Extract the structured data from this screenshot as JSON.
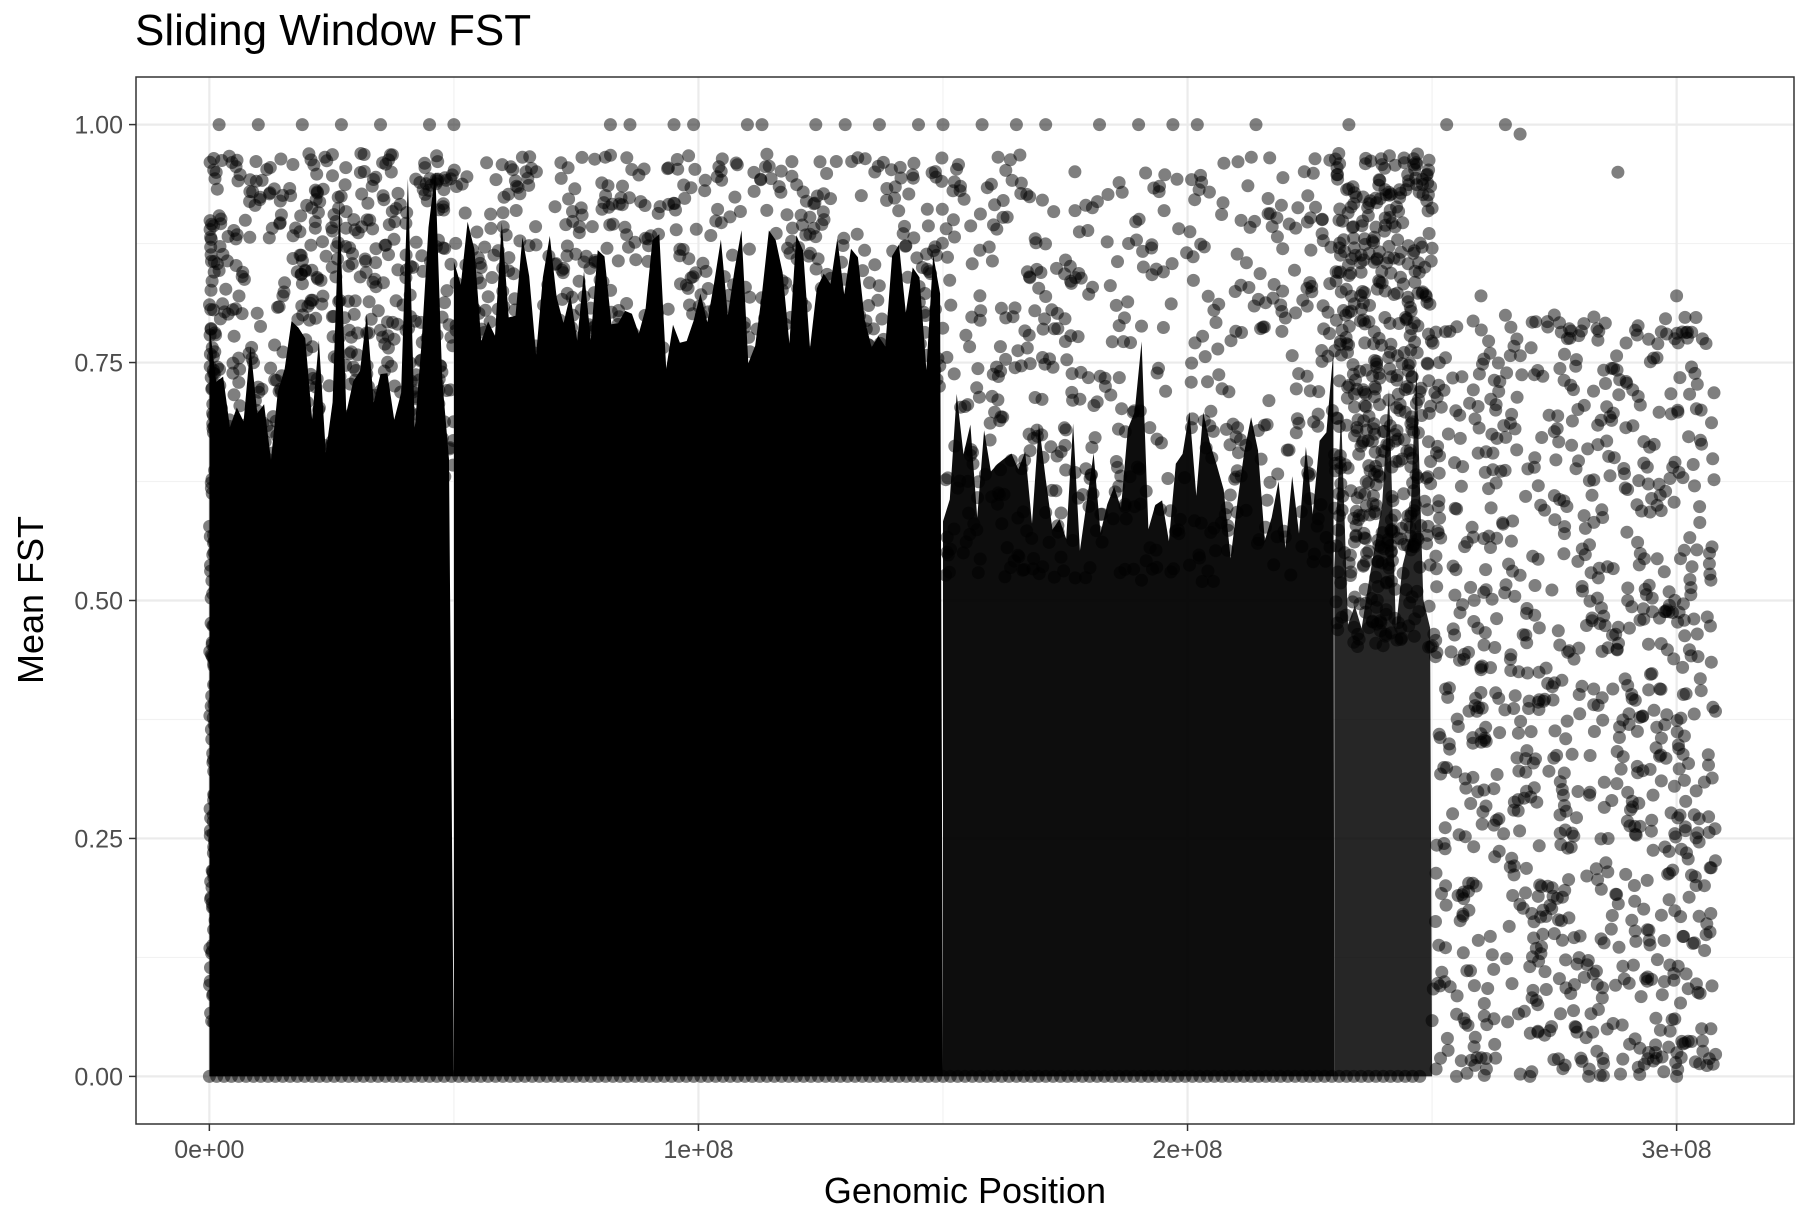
{
  "chart_data": {
    "type": "scatter",
    "title": "Sliding Window FST",
    "xlabel": "Genomic Position",
    "ylabel": "Mean FST",
    "xlim": [
      -15000000,
      324000000
    ],
    "ylim": [
      -0.05,
      1.05
    ],
    "x_ticks": [
      0,
      100000000,
      200000000,
      300000000
    ],
    "x_tick_labels": [
      "0e+00",
      "1e+08",
      "2e+08",
      "3e+08"
    ],
    "y_ticks": [
      0,
      0.25,
      0.5,
      0.75,
      1.0
    ],
    "y_tick_labels": [
      "0.00",
      "0.25",
      "0.50",
      "0.75",
      "1.00"
    ],
    "grid": true,
    "point_color": "#000000",
    "point_opacity": 0.5,
    "density_profile": [
      {
        "x_start": 0,
        "x_end": 50000000,
        "y_main_max": 0.72,
        "density": "very high"
      },
      {
        "x_start": 50000000,
        "x_end": 150000000,
        "y_main_max": 0.82,
        "density": "very high"
      },
      {
        "x_start": 150000000,
        "x_end": 230000000,
        "y_main_max": 0.62,
        "density": "high"
      },
      {
        "x_start": 230000000,
        "x_end": 250000000,
        "y_main_max": 0.55,
        "density": "medium"
      },
      {
        "x_start": 250000000,
        "x_end": 308000000,
        "y_main_max": 0.8,
        "density": "sparse"
      }
    ],
    "notable_points": [
      {
        "x": 2000000,
        "y": 1.0
      },
      {
        "x": 10000000,
        "y": 1.0
      },
      {
        "x": 19000000,
        "y": 1.0
      },
      {
        "x": 27000000,
        "y": 1.0
      },
      {
        "x": 35000000,
        "y": 1.0
      },
      {
        "x": 45000000,
        "y": 1.0
      },
      {
        "x": 50000000,
        "y": 1.0
      },
      {
        "x": 82000000,
        "y": 1.0
      },
      {
        "x": 86000000,
        "y": 1.0
      },
      {
        "x": 95000000,
        "y": 1.0
      },
      {
        "x": 99000000,
        "y": 1.0
      },
      {
        "x": 110000000,
        "y": 1.0
      },
      {
        "x": 113000000,
        "y": 1.0
      },
      {
        "x": 124000000,
        "y": 1.0
      },
      {
        "x": 130000000,
        "y": 1.0
      },
      {
        "x": 137000000,
        "y": 1.0
      },
      {
        "x": 145000000,
        "y": 1.0
      },
      {
        "x": 150000000,
        "y": 1.0
      },
      {
        "x": 158000000,
        "y": 1.0
      },
      {
        "x": 165000000,
        "y": 1.0
      },
      {
        "x": 171000000,
        "y": 1.0
      },
      {
        "x": 182000000,
        "y": 1.0
      },
      {
        "x": 190000000,
        "y": 1.0
      },
      {
        "x": 197000000,
        "y": 1.0
      },
      {
        "x": 202000000,
        "y": 1.0
      },
      {
        "x": 214000000,
        "y": 1.0
      },
      {
        "x": 233000000,
        "y": 1.0
      },
      {
        "x": 253000000,
        "y": 1.0
      },
      {
        "x": 265000000,
        "y": 1.0
      },
      {
        "x": 288000000,
        "y": 0.95
      },
      {
        "x": 268000000,
        "y": 0.99
      },
      {
        "x": 250000000,
        "y": 0.87
      },
      {
        "x": 260000000,
        "y": 0.82
      },
      {
        "x": 275000000,
        "y": 0.8
      },
      {
        "x": 300000000,
        "y": 0.82
      },
      {
        "x": 306000000,
        "y": 0.77
      },
      {
        "x": 305000000,
        "y": 0.7
      },
      {
        "x": 296000000,
        "y": 0.6
      },
      {
        "x": 283000000,
        "y": 0.72
      },
      {
        "x": 271000000,
        "y": 0.65
      },
      {
        "x": 263000000,
        "y": 0.7
      },
      {
        "x": 256000000,
        "y": 0.62
      },
      {
        "x": 290000000,
        "y": 0.5
      },
      {
        "x": 280000000,
        "y": 0.45
      },
      {
        "x": 298000000,
        "y": 0.38
      },
      {
        "x": 267000000,
        "y": 0.4
      },
      {
        "x": 304000000,
        "y": 0.3
      },
      {
        "x": 286000000,
        "y": 0.25
      },
      {
        "x": 259000000,
        "y": 0.2
      },
      {
        "x": 275000000,
        "y": 0.15
      },
      {
        "x": 294000000,
        "y": 0.1
      },
      {
        "x": 307000000,
        "y": 0.05
      },
      {
        "x": 282000000,
        "y": 0.0
      },
      {
        "x": 300000000,
        "y": 0.0
      },
      {
        "x": 270000000,
        "y": 0.0
      },
      {
        "x": 255000000,
        "y": 0.0
      },
      {
        "x": 203000000,
        "y": 0.52
      }
    ]
  }
}
